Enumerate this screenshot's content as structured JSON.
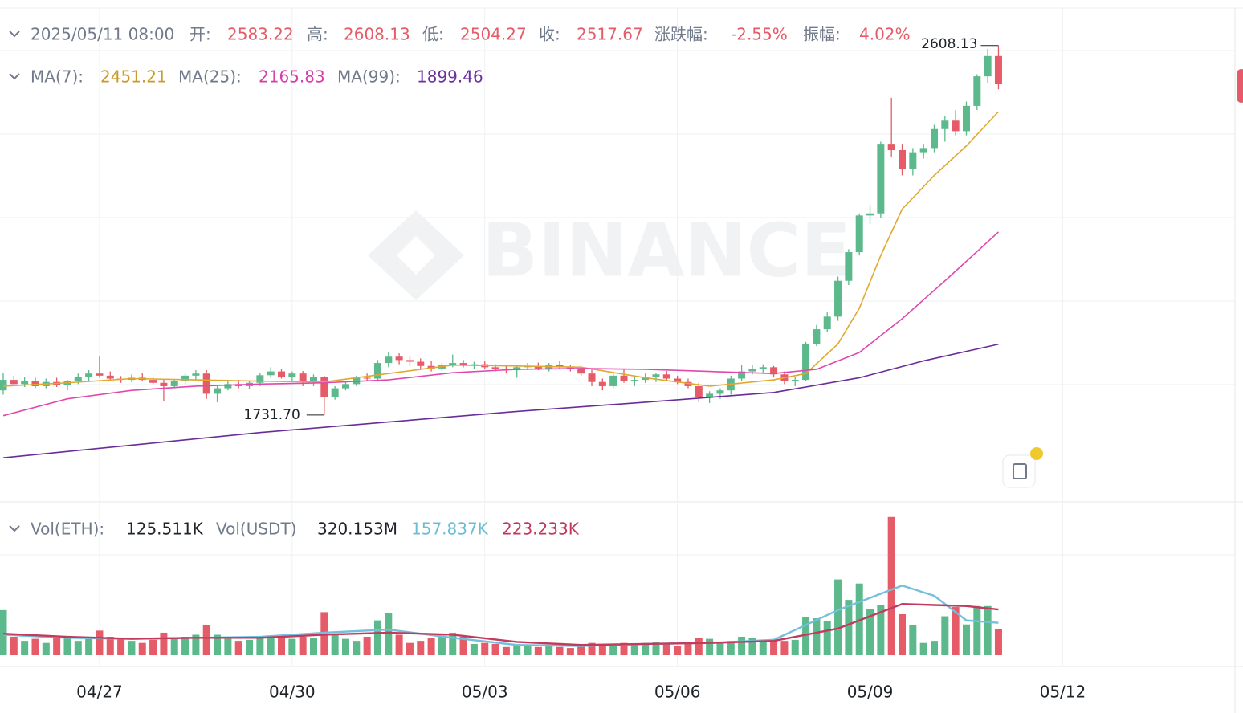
{
  "header": {
    "datetime": "2025/05/11 08:00",
    "open_label": "开:",
    "open": "2583.22",
    "high_label": "高:",
    "high": "2608.13",
    "low_label": "低:",
    "low": "2504.27",
    "close_label": "收:",
    "close": "2517.67",
    "change_label": "涨跌幅:",
    "change": "-2.55%",
    "amplitude_label": "振幅:",
    "amplitude": "4.02%",
    "vol_eth_label": "Vol(ETH):",
    "vol_eth": "125.511K",
    "vol_usdt_label": "Vol(USDT)",
    "vol_usdt": "320.153M",
    "vol_ma1": "157.837K",
    "vol_ma2": "223.233K",
    "watermark": "BINANCE",
    "high_mark": "2608.13",
    "low_mark": "1731.70"
  },
  "chart_data": [
    {
      "type": "candlestick",
      "up_color": "#5bb98b",
      "down_color": "#e55b67",
      "xlim": [
        -0.3,
        115.1
      ],
      "ylim": [
        1525.6,
        2697.2
      ],
      "xticks": [
        {
          "value": 9,
          "label": "04/27"
        },
        {
          "value": 27,
          "label": "04/30"
        },
        {
          "value": 45,
          "label": "05/03"
        },
        {
          "value": 63,
          "label": "05/06"
        },
        {
          "value": 81,
          "label": "05/09"
        },
        {
          "value": 99,
          "label": "05/12"
        }
      ],
      "ohlc": [
        [
          1790,
          1832,
          1780,
          1815
        ],
        [
          1815,
          1825,
          1800,
          1805
        ],
        [
          1805,
          1822,
          1798,
          1812
        ],
        [
          1812,
          1820,
          1796,
          1800
        ],
        [
          1800,
          1818,
          1795,
          1810
        ],
        [
          1810,
          1820,
          1798,
          1803
        ],
        [
          1803,
          1815,
          1790,
          1812
        ],
        [
          1812,
          1830,
          1805,
          1822
        ],
        [
          1822,
          1838,
          1810,
          1830
        ],
        [
          1830,
          1870,
          1820,
          1825
        ],
        [
          1825,
          1835,
          1812,
          1818
        ],
        [
          1818,
          1824,
          1808,
          1815
        ],
        [
          1815,
          1828,
          1810,
          1820
        ],
        [
          1820,
          1832,
          1812,
          1815
        ],
        [
          1815,
          1822,
          1805,
          1808
        ],
        [
          1808,
          1818,
          1765,
          1800
        ],
        [
          1800,
          1815,
          1795,
          1812
        ],
        [
          1812,
          1830,
          1805,
          1825
        ],
        [
          1825,
          1838,
          1815,
          1830
        ],
        [
          1830,
          1838,
          1770,
          1782
        ],
        [
          1782,
          1800,
          1762,
          1795
        ],
        [
          1795,
          1812,
          1790,
          1805
        ],
        [
          1805,
          1815,
          1795,
          1800
        ],
        [
          1800,
          1812,
          1792,
          1808
        ],
        [
          1808,
          1832,
          1800,
          1826
        ],
        [
          1826,
          1845,
          1820,
          1835
        ],
        [
          1835,
          1840,
          1818,
          1822
        ],
        [
          1822,
          1835,
          1812,
          1830
        ],
        [
          1830,
          1836,
          1800,
          1810
        ],
        [
          1810,
          1828,
          1800,
          1822
        ],
        [
          1822,
          1825,
          1731.7,
          1775
        ],
        [
          1775,
          1800,
          1768,
          1795
        ],
        [
          1795,
          1812,
          1790,
          1805
        ],
        [
          1805,
          1825,
          1800,
          1820
        ],
        [
          1820,
          1830,
          1812,
          1818
        ],
        [
          1818,
          1862,
          1815,
          1855
        ],
        [
          1855,
          1880,
          1845,
          1870
        ],
        [
          1870,
          1878,
          1852,
          1862
        ],
        [
          1862,
          1872,
          1848,
          1858
        ],
        [
          1858,
          1866,
          1840,
          1848
        ],
        [
          1848,
          1860,
          1835,
          1842
        ],
        [
          1842,
          1856,
          1836,
          1850
        ],
        [
          1850,
          1875,
          1845,
          1855
        ],
        [
          1855,
          1862,
          1845,
          1850
        ],
        [
          1850,
          1858,
          1840,
          1852
        ],
        [
          1852,
          1860,
          1840,
          1845
        ],
        [
          1845,
          1852,
          1835,
          1840
        ],
        [
          1840,
          1848,
          1830,
          1838
        ],
        [
          1838,
          1850,
          1820,
          1845
        ],
        [
          1845,
          1855,
          1838,
          1848
        ],
        [
          1848,
          1856,
          1838,
          1842
        ],
        [
          1842,
          1855,
          1835,
          1850
        ],
        [
          1850,
          1860,
          1840,
          1845
        ],
        [
          1845,
          1850,
          1835,
          1840
        ],
        [
          1840,
          1848,
          1825,
          1830
        ],
        [
          1830,
          1840,
          1800,
          1810
        ],
        [
          1810,
          1818,
          1790,
          1800
        ],
        [
          1800,
          1832,
          1795,
          1825
        ],
        [
          1825,
          1840,
          1808,
          1812
        ],
        [
          1812,
          1822,
          1800,
          1815
        ],
        [
          1815,
          1830,
          1808,
          1822
        ],
        [
          1822,
          1832,
          1810,
          1828
        ],
        [
          1828,
          1836,
          1812,
          1818
        ],
        [
          1818,
          1825,
          1805,
          1810
        ],
        [
          1810,
          1818,
          1795,
          1800
        ],
        [
          1800,
          1808,
          1762,
          1775
        ],
        [
          1775,
          1788,
          1760,
          1782
        ],
        [
          1782,
          1795,
          1770,
          1790
        ],
        [
          1790,
          1825,
          1780,
          1818
        ],
        [
          1818,
          1850,
          1812,
          1835
        ],
        [
          1835,
          1850,
          1828,
          1840
        ],
        [
          1840,
          1852,
          1832,
          1845
        ],
        [
          1845,
          1848,
          1822,
          1828
        ],
        [
          1828,
          1835,
          1805,
          1812
        ],
        [
          1812,
          1822,
          1800,
          1815
        ],
        [
          1815,
          1905,
          1812,
          1900
        ],
        [
          1900,
          1945,
          1895,
          1935
        ],
        [
          1935,
          1975,
          1928,
          1965
        ],
        [
          1965,
          2060,
          1955,
          2050
        ],
        [
          2050,
          2125,
          2040,
          2118
        ],
        [
          2118,
          2210,
          2110,
          2205
        ],
        [
          2205,
          2230,
          2185,
          2210
        ],
        [
          2210,
          2380,
          2200,
          2375
        ],
        [
          2375,
          2484,
          2345,
          2360
        ],
        [
          2360,
          2375,
          2300,
          2315
        ],
        [
          2315,
          2365,
          2300,
          2355
        ],
        [
          2355,
          2375,
          2340,
          2365
        ],
        [
          2365,
          2420,
          2355,
          2410
        ],
        [
          2410,
          2440,
          2380,
          2430
        ],
        [
          2430,
          2455,
          2395,
          2405
        ],
        [
          2405,
          2475,
          2395,
          2465
        ],
        [
          2465,
          2540,
          2455,
          2535
        ],
        [
          2535,
          2600,
          2520,
          2583.22
        ],
        [
          2583.22,
          2608.13,
          2504.27,
          2517.67
        ]
      ],
      "series": [
        {
          "name": "MA(7):",
          "color": "#e0a82e",
          "x": [
            0,
            6,
            12,
            18,
            24,
            30,
            36,
            42,
            48,
            54,
            60,
            66,
            72,
            75,
            78,
            80,
            82,
            84,
            87,
            90,
            93
          ],
          "values": [
            1800,
            1808,
            1818,
            1815,
            1812,
            1810,
            1830,
            1850,
            1848,
            1845,
            1820,
            1800,
            1815,
            1830,
            1900,
            1985,
            2110,
            2220,
            2300,
            2370,
            2451.21
          ]
        },
        {
          "name": "MA(25):",
          "color": "#e048b0",
          "x": [
            0,
            6,
            12,
            18,
            24,
            30,
            36,
            42,
            48,
            54,
            60,
            66,
            72,
            76,
            80,
            84,
            88,
            93
          ],
          "values": [
            1730,
            1770,
            1790,
            1800,
            1805,
            1808,
            1815,
            1832,
            1840,
            1842,
            1840,
            1835,
            1830,
            1840,
            1880,
            1960,
            2050,
            2165.83
          ]
        },
        {
          "name": "MA(99):",
          "color": "#6a2c99",
          "x": [
            0,
            12,
            24,
            36,
            48,
            60,
            72,
            80,
            86,
            93
          ],
          "values": [
            1630,
            1660,
            1690,
            1715,
            1740,
            1762,
            1785,
            1820,
            1860,
            1899.46
          ]
        }
      ]
    },
    {
      "type": "bar",
      "ylim": [
        0,
        729
      ],
      "values": [
        220,
        90,
        70,
        80,
        60,
        85,
        90,
        70,
        80,
        120,
        90,
        80,
        70,
        60,
        75,
        110,
        85,
        90,
        100,
        145,
        100,
        80,
        70,
        75,
        85,
        90,
        95,
        80,
        90,
        85,
        210,
        100,
        80,
        70,
        90,
        170,
        205,
        100,
        60,
        70,
        85,
        95,
        110,
        90,
        55,
        60,
        55,
        40,
        50,
        45,
        40,
        45,
        40,
        35,
        45,
        60,
        50,
        55,
        60,
        55,
        60,
        65,
        55,
        45,
        60,
        85,
        80,
        65,
        70,
        90,
        85,
        75,
        70,
        70,
        75,
        185,
        180,
        165,
        370,
        270,
        350,
        225,
        245,
        675,
        200,
        145,
        60,
        70,
        190,
        235,
        150,
        240,
        240,
        125.511
      ],
      "series": [
        {
          "color": "#72c0dc",
          "x": [
            0,
            6,
            12,
            18,
            24,
            30,
            36,
            42,
            48,
            54,
            60,
            66,
            72,
            78,
            84,
            87,
            90,
            93
          ],
          "values": [
            100,
            85,
            80,
            85,
            90,
            110,
            125,
            85,
            50,
            45,
            55,
            60,
            75,
            220,
            340,
            290,
            170,
            157.837
          ]
        },
        {
          "color": "#c23a5c",
          "x": [
            0,
            6,
            12,
            18,
            24,
            30,
            36,
            42,
            48,
            54,
            60,
            66,
            72,
            78,
            84,
            87,
            90,
            93
          ],
          "values": [
            105,
            90,
            80,
            85,
            85,
            100,
            110,
            100,
            65,
            50,
            55,
            60,
            70,
            130,
            250,
            245,
            240,
            223.233
          ]
        }
      ]
    }
  ]
}
